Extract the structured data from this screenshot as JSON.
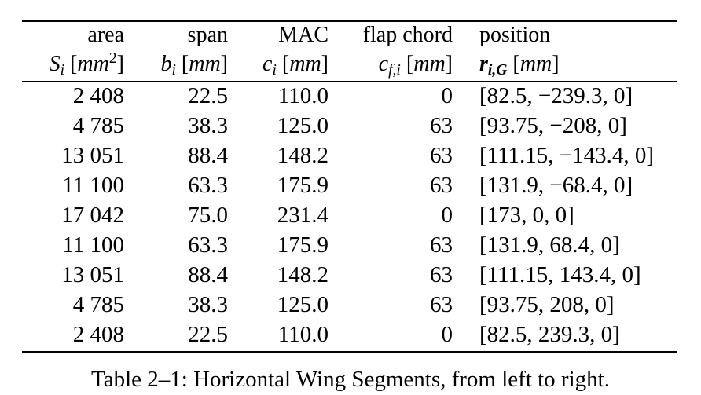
{
  "table": {
    "headers": [
      "area",
      "span",
      "MAC",
      "flap chord",
      "position"
    ],
    "symbols": [
      {
        "sym": "S",
        "sub": "i",
        "unit": "mm",
        "unit_sup": "2"
      },
      {
        "sym": "b",
        "sub": "i",
        "unit": "mm",
        "unit_sup": ""
      },
      {
        "sym": "c",
        "sub": "i",
        "unit": "mm",
        "unit_sup": ""
      },
      {
        "sym": "c",
        "sub": "f,i",
        "unit": "mm",
        "unit_sup": ""
      },
      {
        "sym": "r",
        "sub": "i,G",
        "unit": "mm",
        "unit_sup": ""
      }
    ],
    "rows": [
      [
        "2 408",
        "22.5",
        "110.0",
        "0",
        "[82.5, −239.3, 0]"
      ],
      [
        "4 785",
        "38.3",
        "125.0",
        "63",
        "[93.75, −208, 0]"
      ],
      [
        "13 051",
        "88.4",
        "148.2",
        "63",
        "[111.15, −143.4, 0]"
      ],
      [
        "11 100",
        "63.3",
        "175.9",
        "63",
        "[131.9, −68.4, 0]"
      ],
      [
        "17 042",
        "75.0",
        "231.4",
        "0",
        "[173, 0, 0]"
      ],
      [
        "11 100",
        "63.3",
        "175.9",
        "63",
        "[131.9, 68.4, 0]"
      ],
      [
        "13 051",
        "88.4",
        "148.2",
        "63",
        "[111.15, 143.4, 0]"
      ],
      [
        "4 785",
        "38.3",
        "125.0",
        "63",
        "[93.75, 208, 0]"
      ],
      [
        "2 408",
        "22.5",
        "110.0",
        "0",
        "[82.5, 239.3, 0]"
      ]
    ]
  },
  "caption": "Table 2–1: Horizontal Wing Segments, from left to right."
}
